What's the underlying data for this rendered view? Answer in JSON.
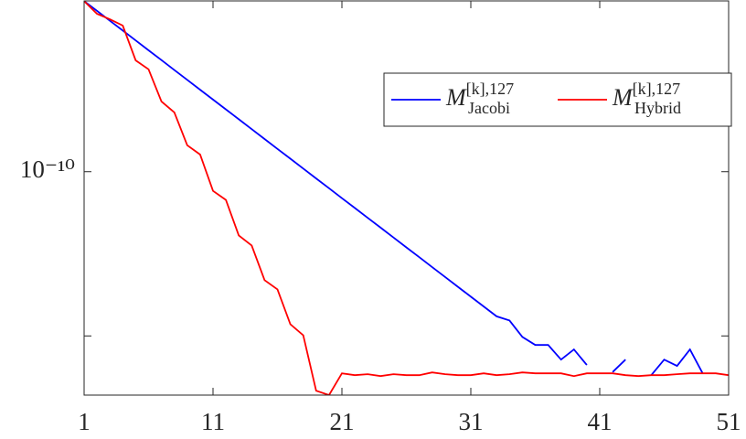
{
  "chart_data": {
    "type": "line",
    "log_y": true,
    "x": [
      1,
      2,
      3,
      4,
      5,
      6,
      7,
      8,
      9,
      10,
      11,
      12,
      13,
      14,
      15,
      16,
      17,
      18,
      19,
      20,
      21,
      22,
      23,
      24,
      25,
      26,
      27,
      28,
      29,
      30,
      31,
      32,
      33,
      34,
      35,
      36,
      37,
      38,
      39,
      40,
      41,
      42,
      43,
      44,
      45,
      46,
      47,
      48,
      49,
      50,
      51
    ],
    "series": [
      {
        "name": "M^{[k],127}_{Jacobi}",
        "color": "#0000ff",
        "values": [
          2.45,
          0.615,
          0.155,
          0.039,
          0.0098,
          0.00245,
          0.00062,
          0.000155,
          3.9e-05,
          9.8e-06,
          2.45e-06,
          6.2e-07,
          1.55e-07,
          3.9e-08,
          9.8e-09,
          2.45e-09,
          6.2e-10,
          1.55e-10,
          3.9e-11,
          9.8e-12,
          2.45e-12,
          6.2e-13,
          1.55e-13,
          3.9e-14,
          9.8e-15,
          2.45e-15,
          6.2e-16,
          1.55e-16,
          3.9e-17,
          9.8e-18,
          2.45e-18,
          6.2e-19,
          1.55e-19,
          8.7e-20,
          8.7e-21,
          2.8e-21,
          2.8e-21,
          3.6e-22,
          1.5e-21,
          1.7e-22,
          null,
          6.3e-23,
          3.6e-22,
          null,
          4.1e-23,
          3.6e-22,
          1.5e-22,
          1.5e-21,
          5e-23,
          null,
          null
        ]
      },
      {
        "name": "M^{[k],127}_{Hybrid}",
        "color": "#ff0000",
        "values": [
          2.45,
          0.41,
          0.19,
          0.078,
          0.0006,
          0.00017,
          1.9e-06,
          4.1e-07,
          4.1e-09,
          1.1e-09,
          6.8e-12,
          1.9e-12,
          1.3e-14,
          3.2e-15,
          2.5e-17,
          6.8e-18,
          5.2e-20,
          1.1e-20,
          4.6e-24,
          2.5e-24,
          5.3e-23,
          4.1e-23,
          4.7e-23,
          3.6e-23,
          4.7e-23,
          4.1e-23,
          4.1e-23,
          6e-23,
          4.7e-23,
          4.1e-23,
          4.1e-23,
          5.3e-23,
          4.1e-23,
          4.7e-23,
          6e-23,
          5.3e-23,
          5.3e-23,
          5.3e-23,
          3.6e-23,
          5.3e-23,
          5.3e-23,
          5.3e-23,
          4.1e-23,
          3.6e-23,
          4.1e-23,
          4.1e-23,
          4.7e-23,
          5.3e-23,
          5.3e-23,
          5.3e-23,
          4.1e-23
        ]
      }
    ],
    "xlim": [
      1,
      51
    ],
    "xticks": [
      1,
      11,
      21,
      31,
      41,
      51
    ],
    "ylim": [
      2.5e-24,
      2.5
    ],
    "yticks": [
      1e-20,
      {
        "value": 1e-10,
        "label": "10⁻¹⁰"
      }
    ],
    "legend": "upper right"
  }
}
